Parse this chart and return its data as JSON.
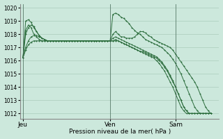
{
  "bg_color": "#cce8dc",
  "grid_color": "#aaccbb",
  "line_color": "#2d6e3e",
  "marker": "+",
  "ylabel_min": 1012,
  "ylabel_max": 1020,
  "xlabel": "Pression niveau de la mer( hPa )",
  "day_labels": [
    "Jeu",
    "Ven",
    "Sam"
  ],
  "day_positions": [
    0,
    32,
    56
  ],
  "xlim": [
    -1,
    72
  ],
  "series": [
    [
      1016.2,
      1018.0,
      1018.5,
      1018.7,
      1018.6,
      1018.2,
      1017.9,
      1017.7,
      1017.6,
      1017.5,
      1017.5,
      1017.5,
      1017.5,
      1017.5,
      1017.5,
      1017.5,
      1017.5,
      1017.5,
      1017.5,
      1017.5,
      1017.5,
      1017.5,
      1017.5,
      1017.5,
      1017.5,
      1017.5,
      1017.5,
      1017.5,
      1017.5,
      1017.5,
      1017.5,
      1017.5,
      1017.5,
      1018.0,
      1018.2,
      1018.0,
      1017.8,
      1017.8,
      1017.7,
      1017.7,
      1017.7,
      1017.8,
      1018.0,
      1018.2,
      1018.2,
      1018.1,
      1017.9,
      1017.8,
      1017.6,
      1017.5,
      1017.4,
      1017.3,
      1017.2,
      1017.1,
      1017.0,
      1016.8,
      1016.5,
      1016.2,
      1015.9,
      1015.6,
      1015.3,
      1015.0,
      1014.7,
      1014.4,
      1014.0,
      1013.5,
      1013.0,
      1012.5,
      1012.2,
      1012.0
    ],
    [
      1016.2,
      1019.0,
      1019.1,
      1018.9,
      1018.5,
      1018.2,
      1017.9,
      1017.7,
      1017.6,
      1017.5,
      1017.5,
      1017.5,
      1017.5,
      1017.5,
      1017.5,
      1017.5,
      1017.5,
      1017.5,
      1017.5,
      1017.5,
      1017.5,
      1017.5,
      1017.5,
      1017.5,
      1017.5,
      1017.5,
      1017.5,
      1017.5,
      1017.5,
      1017.5,
      1017.5,
      1017.5,
      1017.5,
      1019.5,
      1019.6,
      1019.5,
      1019.3,
      1019.2,
      1019.0,
      1018.8,
      1018.5,
      1018.3,
      1018.1,
      1018.0,
      1017.8,
      1017.6,
      1017.5,
      1017.4,
      1017.3,
      1017.2,
      1017.1,
      1017.0,
      1016.8,
      1016.6,
      1016.4,
      1016.1,
      1015.8,
      1015.4,
      1015.0,
      1014.5,
      1014.0,
      1013.5,
      1013.0,
      1012.5,
      1012.2,
      1012.0,
      1012.0,
      1012.0,
      1012.0,
      1012.0
    ],
    [
      1016.2,
      1017.0,
      1017.5,
      1017.8,
      1017.9,
      1017.9,
      1017.8,
      1017.7,
      1017.6,
      1017.5,
      1017.5,
      1017.5,
      1017.5,
      1017.5,
      1017.5,
      1017.5,
      1017.5,
      1017.5,
      1017.5,
      1017.5,
      1017.5,
      1017.5,
      1017.5,
      1017.5,
      1017.5,
      1017.5,
      1017.5,
      1017.5,
      1017.5,
      1017.5,
      1017.5,
      1017.5,
      1017.5,
      1017.5,
      1017.6,
      1017.5,
      1017.4,
      1017.3,
      1017.2,
      1017.1,
      1017.0,
      1016.9,
      1016.8,
      1016.7,
      1016.7,
      1016.6,
      1016.5,
      1016.4,
      1016.3,
      1016.2,
      1016.0,
      1015.8,
      1015.5,
      1015.2,
      1014.8,
      1014.4,
      1014.0,
      1013.5,
      1013.0,
      1012.5,
      1012.2,
      1012.0,
      1012.0,
      1012.0,
      1012.0,
      1012.0,
      1012.0,
      1012.0,
      1012.0,
      1012.0
    ],
    [
      1016.2,
      1018.3,
      1018.7,
      1018.5,
      1018.0,
      1017.8,
      1017.6,
      1017.5,
      1017.5,
      1017.5,
      1017.5,
      1017.5,
      1017.5,
      1017.5,
      1017.5,
      1017.5,
      1017.5,
      1017.5,
      1017.5,
      1017.5,
      1017.5,
      1017.5,
      1017.5,
      1017.5,
      1017.5,
      1017.5,
      1017.5,
      1017.5,
      1017.5,
      1017.5,
      1017.5,
      1017.5,
      1017.5,
      1017.7,
      1017.8,
      1017.7,
      1017.6,
      1017.5,
      1017.4,
      1017.3,
      1017.2,
      1017.1,
      1017.0,
      1016.9,
      1016.8,
      1016.7,
      1016.6,
      1016.5,
      1016.4,
      1016.3,
      1016.1,
      1015.9,
      1015.6,
      1015.3,
      1014.9,
      1014.5,
      1014.0,
      1013.5,
      1013.0,
      1012.5,
      1012.2,
      1012.0,
      1012.0,
      1012.0,
      1012.0,
      1012.0,
      1012.0,
      1012.0,
      1012.0,
      1012.0
    ],
    [
      1016.2,
      1016.8,
      1017.2,
      1017.4,
      1017.5,
      1017.5,
      1017.5,
      1017.5,
      1017.5,
      1017.5,
      1017.5,
      1017.5,
      1017.5,
      1017.5,
      1017.5,
      1017.5,
      1017.5,
      1017.5,
      1017.5,
      1017.5,
      1017.5,
      1017.5,
      1017.5,
      1017.5,
      1017.5,
      1017.5,
      1017.5,
      1017.5,
      1017.5,
      1017.5,
      1017.5,
      1017.5,
      1017.5,
      1017.5,
      1017.5,
      1017.5,
      1017.4,
      1017.3,
      1017.2,
      1017.1,
      1017.0,
      1016.9,
      1016.8,
      1016.7,
      1016.6,
      1016.5,
      1016.4,
      1016.3,
      1016.2,
      1016.0,
      1015.8,
      1015.5,
      1015.2,
      1014.8,
      1014.4,
      1014.0,
      1013.5,
      1013.0,
      1012.5,
      1012.2,
      1012.0,
      1012.0,
      1012.0,
      1012.0,
      1012.0,
      1012.0,
      1012.0,
      1012.0,
      1012.0,
      1012.0
    ]
  ],
  "figsize": [
    3.2,
    2.0
  ],
  "dpi": 100
}
